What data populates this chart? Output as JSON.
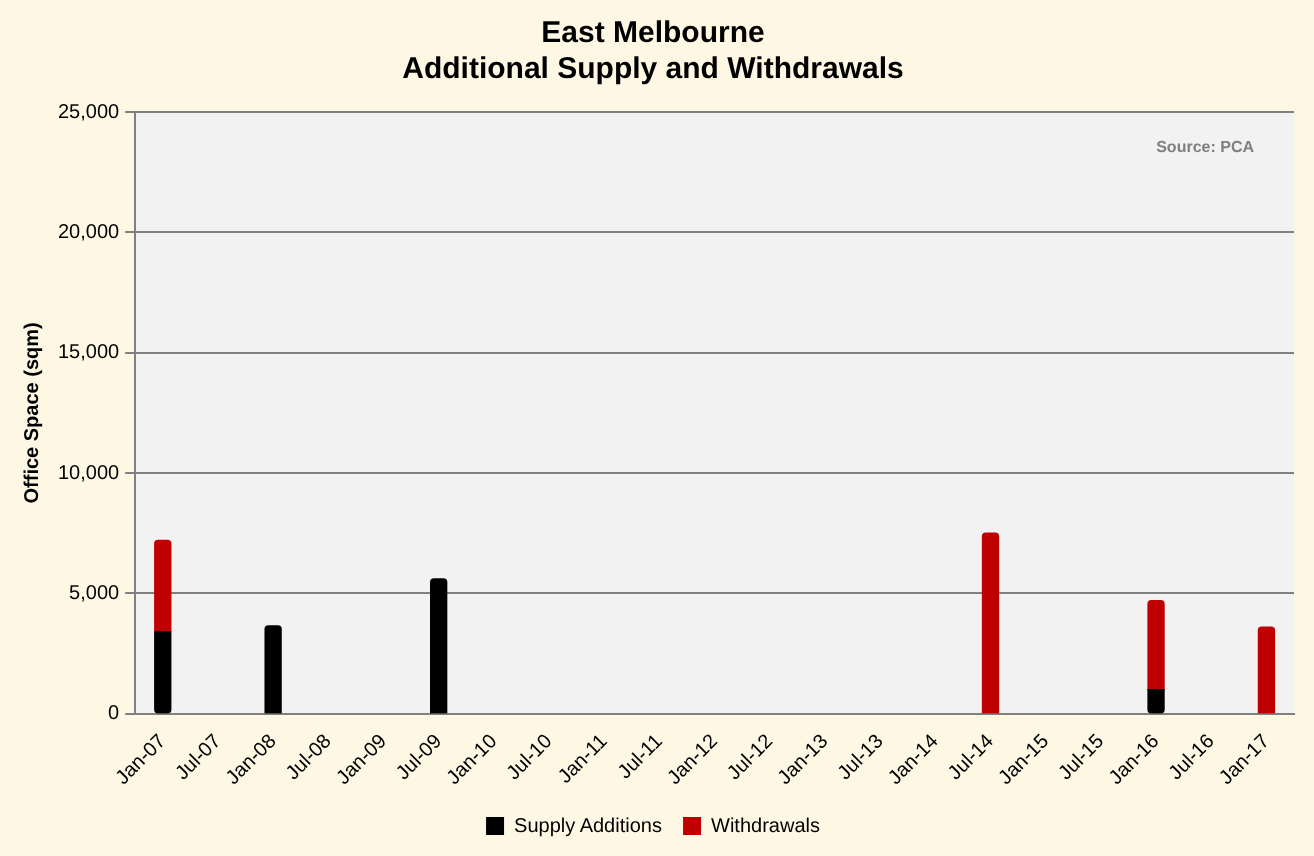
{
  "chart_data": {
    "type": "bar",
    "title": "East Melbourne\nAdditional Supply and Withdrawals",
    "ylabel": "Office Space (sqm)",
    "annotations": [
      "Source: PCA"
    ],
    "categories": [
      "Jan-07",
      "Jul-07",
      "Jan-08",
      "Jul-08",
      "Jan-09",
      "Jul-09",
      "Jan-10",
      "Jul-10",
      "Jan-11",
      "Jul-11",
      "Jan-12",
      "Jul-12",
      "Jan-13",
      "Jul-13",
      "Jan-14",
      "Jul-14",
      "Jan-15",
      "Jul-15",
      "Jan-16",
      "Jul-16",
      "Jan-17"
    ],
    "stacked": true,
    "series": [
      {
        "name": "Supply Additions",
        "color": "#000000",
        "values": [
          3400,
          null,
          3650,
          null,
          null,
          5600,
          null,
          null,
          null,
          null,
          null,
          null,
          null,
          null,
          null,
          null,
          null,
          null,
          1000,
          null,
          null
        ]
      },
      {
        "name": "Withdrawals",
        "color": "#c00000",
        "values": [
          3800,
          null,
          null,
          null,
          null,
          null,
          null,
          null,
          null,
          null,
          null,
          null,
          null,
          null,
          null,
          7500,
          null,
          null,
          3700,
          null,
          3600
        ]
      }
    ],
    "ylim": [
      0,
      25000
    ],
    "yticks": [
      0,
      {
        "value": 5000,
        "label": "5,000"
      },
      {
        "value": 10000,
        "label": "10,000"
      },
      {
        "value": 15000,
        "label": "15,000"
      },
      {
        "value": 20000,
        "label": "20,000"
      },
      {
        "value": 25000,
        "label": "25,000"
      }
    ],
    "grid": "y",
    "legend": "bottom"
  }
}
